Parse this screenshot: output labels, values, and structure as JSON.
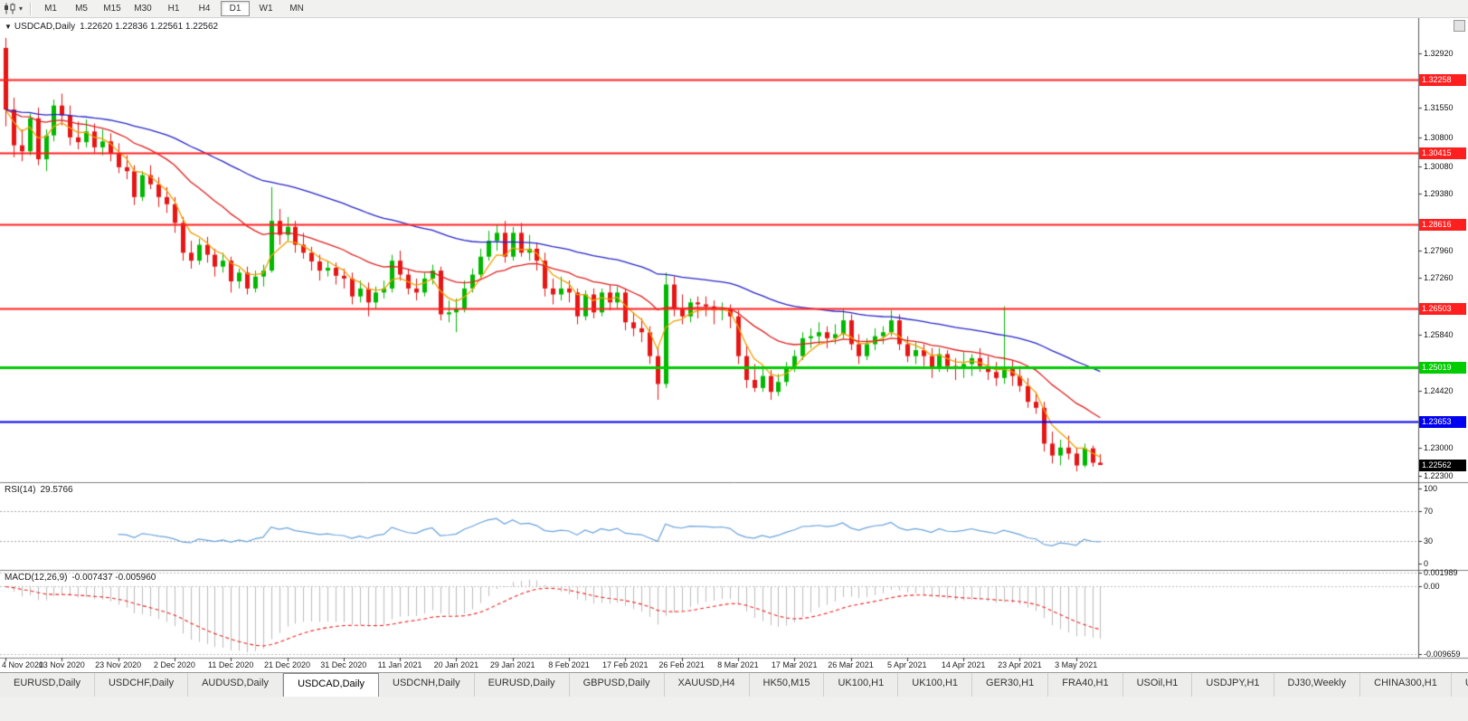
{
  "toolbar": {
    "timeframes": [
      "M1",
      "M5",
      "M15",
      "M30",
      "H1",
      "H4",
      "D1",
      "W1",
      "MN"
    ],
    "active_timeframe": "D1"
  },
  "icons": {
    "chart_type_dropdown": "▾",
    "title_marker": "▼"
  },
  "chart_data": {
    "type": "candlestick",
    "symbol_label": "USDCAD,Daily",
    "ohlc_display": "1.22620 1.22836 1.22561 1.22562",
    "ylim": [
      1.2213,
      1.338
    ],
    "colors": {
      "up": "#00B800",
      "down": "#E81515"
    },
    "x_labels": [
      "4 Nov 2020",
      "13 Nov 2020",
      "23 Nov 2020",
      "2 Dec 2020",
      "11 Dec 2020",
      "21 Dec 2020",
      "31 Dec 2020",
      "11 Jan 2021",
      "20 Jan 2021",
      "29 Jan 2021",
      "8 Feb 2021",
      "17 Feb 2021",
      "26 Feb 2021",
      "8 Mar 2021",
      "17 Mar 2021",
      "26 Mar 2021",
      "5 Apr 2021",
      "14 Apr 2021",
      "23 Apr 2021",
      "3 May 2021"
    ],
    "label_every": 7,
    "candles": [
      [
        1.3305,
        1.333,
        1.3108,
        1.315
      ],
      [
        1.315,
        1.318,
        1.303,
        1.306
      ],
      [
        1.306,
        1.31,
        1.302,
        1.3045
      ],
      [
        1.3045,
        1.314,
        1.3035,
        1.3128
      ],
      [
        1.3128,
        1.3155,
        1.301,
        1.3025
      ],
      [
        1.3025,
        1.31,
        1.2995,
        1.3085
      ],
      [
        1.3085,
        1.3175,
        1.307,
        1.316
      ],
      [
        1.316,
        1.319,
        1.311,
        1.3135
      ],
      [
        1.3135,
        1.316,
        1.306,
        1.308
      ],
      [
        1.308,
        1.312,
        1.305,
        1.3068
      ],
      [
        1.3068,
        1.3125,
        1.3055,
        1.3095
      ],
      [
        1.3095,
        1.3115,
        1.304,
        1.3055
      ],
      [
        1.3055,
        1.31,
        1.3035,
        1.307
      ],
      [
        1.307,
        1.309,
        1.302,
        1.304
      ],
      [
        1.304,
        1.3065,
        1.299,
        1.3005
      ],
      [
        1.3005,
        1.3035,
        1.2975,
        1.2995
      ],
      [
        1.2995,
        1.301,
        1.291,
        1.293
      ],
      [
        1.293,
        1.2995,
        1.292,
        1.2985
      ],
      [
        1.2985,
        1.301,
        1.295,
        1.2962
      ],
      [
        1.2962,
        1.298,
        1.2905,
        1.293
      ],
      [
        1.293,
        1.2955,
        1.289,
        1.2912
      ],
      [
        1.2912,
        1.293,
        1.284,
        1.2865
      ],
      [
        1.2865,
        1.288,
        1.277,
        1.279
      ],
      [
        1.279,
        1.282,
        1.275,
        1.277
      ],
      [
        1.277,
        1.2825,
        1.276,
        1.281
      ],
      [
        1.281,
        1.283,
        1.2765,
        1.2785
      ],
      [
        1.2785,
        1.28,
        1.273,
        1.2755
      ],
      [
        1.2755,
        1.279,
        1.274,
        1.277
      ],
      [
        1.277,
        1.278,
        1.269,
        1.2718
      ],
      [
        1.2718,
        1.275,
        1.27,
        1.274
      ],
      [
        1.274,
        1.2755,
        1.2685,
        1.27
      ],
      [
        1.27,
        1.2745,
        1.269,
        1.273
      ],
      [
        1.273,
        1.276,
        1.2705,
        1.2745
      ],
      [
        1.2745,
        1.2955,
        1.274,
        1.287
      ],
      [
        1.287,
        1.29,
        1.281,
        1.2835
      ],
      [
        1.2835,
        1.288,
        1.282,
        1.2855
      ],
      [
        1.2855,
        1.287,
        1.279,
        1.281
      ],
      [
        1.281,
        1.284,
        1.2775,
        1.279
      ],
      [
        1.279,
        1.2805,
        1.2745,
        1.2768
      ],
      [
        1.2768,
        1.2785,
        1.272,
        1.2745
      ],
      [
        1.2745,
        1.277,
        1.273,
        1.2752
      ],
      [
        1.2752,
        1.2765,
        1.271,
        1.2732
      ],
      [
        1.2732,
        1.275,
        1.27,
        1.2725
      ],
      [
        1.2725,
        1.274,
        1.266,
        1.268
      ],
      [
        1.268,
        1.272,
        1.2665,
        1.27
      ],
      [
        1.27,
        1.2715,
        1.263,
        1.2665
      ],
      [
        1.2665,
        1.2705,
        1.265,
        1.269
      ],
      [
        1.269,
        1.272,
        1.2675,
        1.27
      ],
      [
        1.27,
        1.2785,
        1.269,
        1.277
      ],
      [
        1.277,
        1.2795,
        1.272,
        1.2735
      ],
      [
        1.2735,
        1.275,
        1.2685,
        1.27
      ],
      [
        1.27,
        1.2725,
        1.267,
        1.269
      ],
      [
        1.269,
        1.274,
        1.268,
        1.2725
      ],
      [
        1.2725,
        1.276,
        1.271,
        1.2745
      ],
      [
        1.2745,
        1.2755,
        1.262,
        1.2635
      ],
      [
        1.2635,
        1.267,
        1.2615,
        1.264
      ],
      [
        1.264,
        1.2675,
        1.259,
        1.265
      ],
      [
        1.265,
        1.272,
        1.264,
        1.27
      ],
      [
        1.27,
        1.275,
        1.269,
        1.2735
      ],
      [
        1.2735,
        1.28,
        1.2725,
        1.278
      ],
      [
        1.278,
        1.2845,
        1.277,
        1.282
      ],
      [
        1.282,
        1.286,
        1.2795,
        1.284
      ],
      [
        1.284,
        1.287,
        1.2765,
        1.278
      ],
      [
        1.278,
        1.2855,
        1.277,
        1.284
      ],
      [
        1.284,
        1.2865,
        1.278,
        1.279
      ],
      [
        1.279,
        1.2835,
        1.277,
        1.28
      ],
      [
        1.28,
        1.2815,
        1.2745,
        1.277
      ],
      [
        1.277,
        1.279,
        1.268,
        1.27
      ],
      [
        1.27,
        1.2725,
        1.266,
        1.2685
      ],
      [
        1.2685,
        1.273,
        1.267,
        1.27
      ],
      [
        1.27,
        1.272,
        1.2665,
        1.269
      ],
      [
        1.269,
        1.27,
        1.261,
        1.263
      ],
      [
        1.263,
        1.2695,
        1.262,
        1.2685
      ],
      [
        1.2685,
        1.27,
        1.2625,
        1.264
      ],
      [
        1.264,
        1.27,
        1.263,
        1.269
      ],
      [
        1.269,
        1.271,
        1.2645,
        1.2665
      ],
      [
        1.2665,
        1.2705,
        1.265,
        1.269
      ],
      [
        1.269,
        1.27,
        1.2595,
        1.2615
      ],
      [
        1.2615,
        1.264,
        1.258,
        1.26
      ],
      [
        1.26,
        1.2625,
        1.2565,
        1.259
      ],
      [
        1.259,
        1.2605,
        1.251,
        1.253
      ],
      [
        1.253,
        1.255,
        1.242,
        1.246
      ],
      [
        1.246,
        1.274,
        1.245,
        1.271
      ],
      [
        1.271,
        1.273,
        1.263,
        1.265
      ],
      [
        1.265,
        1.2685,
        1.261,
        1.263
      ],
      [
        1.263,
        1.2675,
        1.2615,
        1.2665
      ],
      [
        1.2665,
        1.268,
        1.2625,
        1.266
      ],
      [
        1.266,
        1.268,
        1.263,
        1.2655
      ],
      [
        1.2655,
        1.267,
        1.261,
        1.2645
      ],
      [
        1.2645,
        1.2665,
        1.262,
        1.265
      ],
      [
        1.265,
        1.266,
        1.26,
        1.263
      ],
      [
        1.263,
        1.2645,
        1.251,
        1.253
      ],
      [
        1.253,
        1.256,
        1.245,
        1.247
      ],
      [
        1.247,
        1.251,
        1.244,
        1.245
      ],
      [
        1.245,
        1.2505,
        1.244,
        1.248
      ],
      [
        1.248,
        1.2495,
        1.242,
        1.244
      ],
      [
        1.244,
        1.2485,
        1.243,
        1.2465
      ],
      [
        1.2465,
        1.2515,
        1.2455,
        1.25
      ],
      [
        1.25,
        1.2545,
        1.249,
        1.253
      ],
      [
        1.253,
        1.259,
        1.252,
        1.2575
      ],
      [
        1.2575,
        1.26,
        1.255,
        1.258
      ],
      [
        1.258,
        1.2615,
        1.256,
        1.259
      ],
      [
        1.259,
        1.2605,
        1.255,
        1.2575
      ],
      [
        1.2575,
        1.261,
        1.256,
        1.2585
      ],
      [
        1.2585,
        1.265,
        1.2575,
        1.262
      ],
      [
        1.262,
        1.2635,
        1.2545,
        1.256
      ],
      [
        1.256,
        1.2585,
        1.251,
        1.253
      ],
      [
        1.253,
        1.2575,
        1.252,
        1.256
      ],
      [
        1.256,
        1.26,
        1.2545,
        1.258
      ],
      [
        1.258,
        1.2605,
        1.256,
        1.259
      ],
      [
        1.259,
        1.2645,
        1.258,
        1.262
      ],
      [
        1.262,
        1.2635,
        1.2545,
        1.256
      ],
      [
        1.256,
        1.258,
        1.2515,
        1.253
      ],
      [
        1.253,
        1.2565,
        1.251,
        1.2545
      ],
      [
        1.2545,
        1.256,
        1.2505,
        1.253
      ],
      [
        1.253,
        1.255,
        1.2475,
        1.25
      ],
      [
        1.25,
        1.255,
        1.249,
        1.2535
      ],
      [
        1.2535,
        1.2545,
        1.249,
        1.2505
      ],
      [
        1.2505,
        1.2525,
        1.247,
        1.25
      ],
      [
        1.25,
        1.254,
        1.2475,
        1.251
      ],
      [
        1.251,
        1.2535,
        1.248,
        1.2525
      ],
      [
        1.2525,
        1.255,
        1.249,
        1.2505
      ],
      [
        1.2505,
        1.253,
        1.247,
        1.249
      ],
      [
        1.249,
        1.2515,
        1.2455,
        1.2475
      ],
      [
        1.2475,
        1.2655,
        1.246,
        1.25
      ],
      [
        1.25,
        1.252,
        1.2455,
        1.248
      ],
      [
        1.248,
        1.2505,
        1.244,
        1.2455
      ],
      [
        1.2455,
        1.2475,
        1.24,
        1.2415
      ],
      [
        1.2415,
        1.244,
        1.2385,
        1.24
      ],
      [
        1.24,
        1.2415,
        1.229,
        1.231
      ],
      [
        1.231,
        1.234,
        1.226,
        1.228
      ],
      [
        1.228,
        1.232,
        1.2255,
        1.23
      ],
      [
        1.23,
        1.233,
        1.227,
        1.2285
      ],
      [
        1.2285,
        1.23,
        1.224,
        1.2255
      ],
      [
        1.2255,
        1.231,
        1.225,
        1.2298
      ],
      [
        1.2298,
        1.2305,
        1.2252,
        1.2262
      ],
      [
        1.2262,
        1.22836,
        1.22561,
        1.22562
      ]
    ],
    "moving_averages": [
      {
        "name": "fast-ma",
        "period": 5,
        "color": "#F0A000"
      },
      {
        "name": "mid-ma",
        "period": 20,
        "color": "#E02020"
      },
      {
        "name": "slow-ma",
        "period": 55,
        "color": "#2525C8"
      }
    ],
    "hlines": [
      {
        "price": 1.32258,
        "label": "1.32258",
        "color": "#FF1F1F",
        "width": 2
      },
      {
        "price": 1.30415,
        "label": "1.30415",
        "color": "#FF1F1F",
        "width": 2
      },
      {
        "price": 1.28616,
        "label": "1.28616",
        "color": "#FF1F1F",
        "width": 2
      },
      {
        "price": 1.26503,
        "label": "1.26503",
        "color": "#FF1F1F",
        "width": 2
      },
      {
        "price": 1.25019,
        "label": "1.25019",
        "color": "#00CC00",
        "width": 3
      },
      {
        "price": 1.23653,
        "label": "1.23653",
        "color": "#0000F0",
        "width": 2
      }
    ],
    "current_price": {
      "price": 1.22562,
      "label": "1.22562",
      "color": "#000000"
    },
    "price_ticks": [
      "1.32920",
      "1.31550",
      "1.30800",
      "1.30080",
      "1.29380",
      "1.27960",
      "1.27260",
      "1.25840",
      "1.24420",
      "1.23000",
      "1.22300"
    ],
    "rsi": {
      "label": "RSI(14)",
      "value": "29.5766",
      "period": 14,
      "color": "#69A3DC",
      "levels": [
        70,
        30
      ],
      "axis": [
        "100",
        "70",
        "30",
        "0"
      ],
      "ylim": [
        -8,
        108
      ]
    },
    "macd": {
      "label": "MACD(12,26,9)",
      "values": "-0.007437 -0.005960",
      "fast": 12,
      "slow": 26,
      "signal": 9,
      "histogram_color": "#BDBDBD",
      "signal_color": "#EE2222",
      "axis": [
        "0.001989",
        "0.00",
        "-0.009659"
      ],
      "ylim": [
        -0.0102,
        0.0024
      ]
    }
  },
  "bottom_tabs": {
    "active_index": 3,
    "tabs": [
      "EURUSD,Daily",
      "USDCHF,Daily",
      "AUDUSD,Daily",
      "USDCAD,Daily",
      "USDCNH,Daily",
      "EURUSD,Daily",
      "GBPUSD,Daily",
      "XAUUSD,H4",
      "HK50,M15",
      "UK100,H1",
      "UK100,H1",
      "GER30,H1",
      "FRA40,H1",
      "USOil,H1",
      "USDJPY,H1",
      "DJ30,Weekly",
      "CHINA300,H1",
      "U"
    ]
  }
}
